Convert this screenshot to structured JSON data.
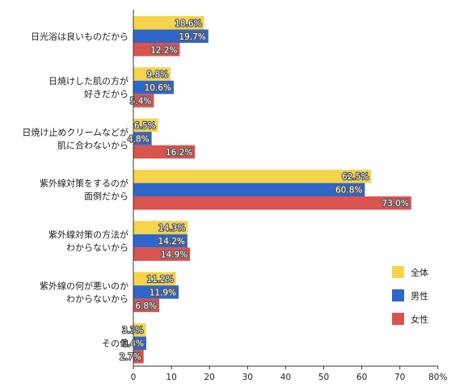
{
  "chart_data": {
    "type": "bar",
    "orientation": "horizontal",
    "categories": [
      [
        "日光浴は良いものだから"
      ],
      [
        "日焼けした肌の方が",
        "好きだから"
      ],
      [
        "日焼け止めクリームなどが",
        "肌に合わないから"
      ],
      [
        "紫外線対策をするのが",
        "面倒だから"
      ],
      [
        "紫外線対策の方法が",
        "わからないから"
      ],
      [
        "紫外線の何が悪いのか",
        "わからないから"
      ],
      [
        "その他"
      ]
    ],
    "series": [
      {
        "name": "全体",
        "color": "#f5d44a",
        "values": [
          18.6,
          9.8,
          6.5,
          62.5,
          14.3,
          11.2,
          3.3
        ]
      },
      {
        "name": "男性",
        "color": "#2f66c9",
        "values": [
          19.7,
          10.6,
          4.8,
          60.8,
          14.2,
          11.9,
          3.4
        ]
      },
      {
        "name": "女性",
        "color": "#d9534f",
        "values": [
          12.2,
          5.4,
          16.2,
          73.0,
          14.9,
          6.8,
          2.7
        ]
      }
    ],
    "value_labels": [
      [
        "18.6%",
        "9.8%",
        "6.5%",
        "62.5%",
        "14.3%",
        "11.2%",
        "3.3%"
      ],
      [
        "19.7%",
        "10.6%",
        "4.8%",
        "60.8%",
        "14.2%",
        "11.9%",
        "3.4%"
      ],
      [
        "12.2%",
        "5.4%",
        "16.2%",
        "73.0%",
        "14.9%",
        "6.8%",
        "2.7%"
      ]
    ],
    "x_ticks": [
      "0",
      "10",
      "20",
      "30",
      "40",
      "50",
      "60",
      "70",
      "80%"
    ],
    "xlim": [
      0,
      80
    ],
    "legend_position": "right",
    "grid": false
  }
}
